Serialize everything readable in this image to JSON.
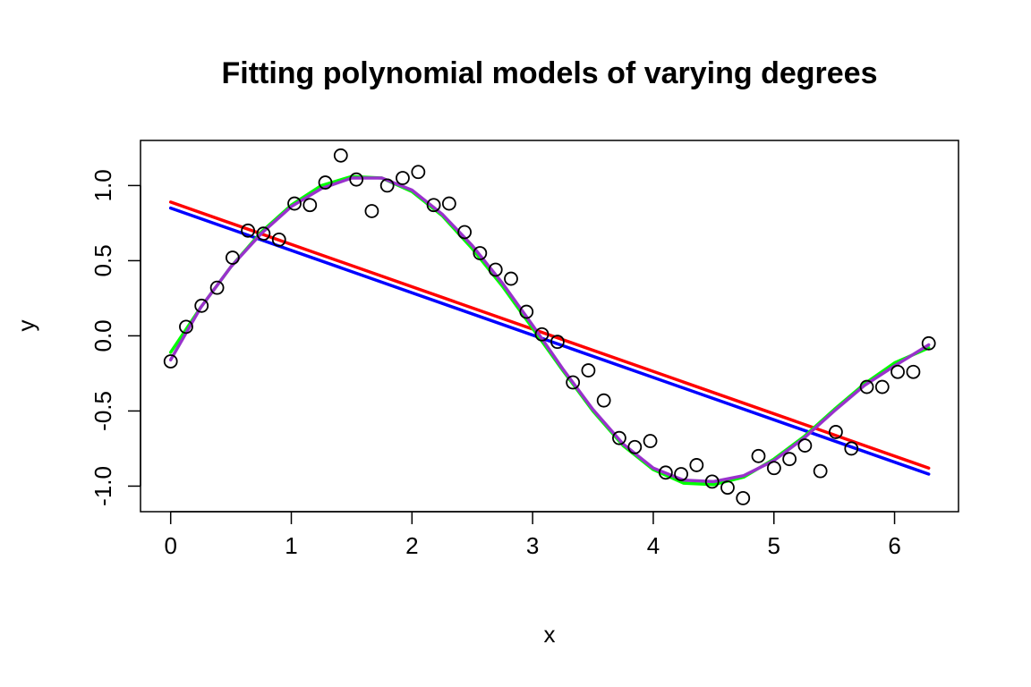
{
  "chart_data": {
    "type": "scatter",
    "title": "Fitting polynomial models of varying degrees",
    "xlabel": "x",
    "ylabel": "y",
    "xlim": [
      -0.25,
      6.53
    ],
    "ylim": [
      -1.17,
      1.3
    ],
    "x_ticks": [
      0,
      1,
      2,
      3,
      4,
      5,
      6
    ],
    "x_tick_labels": [
      "0",
      "1",
      "2",
      "3",
      "4",
      "5",
      "6"
    ],
    "y_ticks": [
      -1.0,
      -0.5,
      0.0,
      0.5,
      1.0
    ],
    "y_tick_labels": [
      "-1.0",
      "-0.5",
      "0.0",
      "0.5",
      "1.0"
    ],
    "grid": false,
    "points": {
      "x": [
        0.0,
        0.128,
        0.256,
        0.385,
        0.513,
        0.641,
        0.769,
        0.898,
        1.026,
        1.154,
        1.282,
        1.41,
        1.539,
        1.667,
        1.795,
        1.923,
        2.052,
        2.18,
        2.308,
        2.436,
        2.564,
        2.693,
        2.821,
        2.949,
        3.077,
        3.206,
        3.334,
        3.462,
        3.59,
        3.718,
        3.847,
        3.975,
        4.103,
        4.231,
        4.359,
        4.488,
        4.616,
        4.744,
        4.872,
        5.001,
        5.129,
        5.257,
        5.385,
        5.513,
        5.642,
        5.77,
        5.898,
        6.026,
        6.155,
        6.283
      ],
      "y": [
        -0.17,
        0.06,
        0.2,
        0.32,
        0.52,
        0.7,
        0.68,
        0.64,
        0.88,
        0.87,
        1.02,
        1.2,
        1.04,
        0.83,
        1.0,
        1.05,
        1.09,
        0.87,
        0.88,
        0.69,
        0.55,
        0.44,
        0.38,
        0.16,
        0.01,
        -0.04,
        -0.31,
        -0.23,
        -0.43,
        -0.68,
        -0.74,
        -0.7,
        -0.91,
        -0.92,
        -0.86,
        -0.97,
        -1.01,
        -1.08,
        -0.8,
        -0.88,
        -0.82,
        -0.73,
        -0.9,
        -0.64,
        -0.75,
        -0.34,
        -0.34,
        -0.24,
        -0.24,
        -0.05
      ]
    },
    "fits": [
      {
        "color": "#ff0000",
        "kind": "linear",
        "endpoints": [
          [
            0.0,
            0.89
          ],
          [
            6.283,
            -0.88
          ]
        ]
      },
      {
        "color": "#0000ff",
        "kind": "linear",
        "endpoints": [
          [
            0.0,
            0.85
          ],
          [
            6.283,
            -0.92
          ]
        ]
      },
      {
        "color": "#00ff00",
        "kind": "smooth",
        "x": [
          0.0,
          0.25,
          0.5,
          0.75,
          1.0,
          1.25,
          1.5,
          1.75,
          2.0,
          2.25,
          2.5,
          2.75,
          3.0,
          3.25,
          3.5,
          3.75,
          4.0,
          4.25,
          4.5,
          4.75,
          5.0,
          5.25,
          5.5,
          5.75,
          6.0,
          6.283
        ],
        "y": [
          -0.11,
          0.19,
          0.46,
          0.69,
          0.87,
          1.0,
          1.06,
          1.05,
          0.96,
          0.8,
          0.58,
          0.33,
          0.05,
          -0.23,
          -0.5,
          -0.73,
          -0.89,
          -0.98,
          -0.99,
          -0.94,
          -0.82,
          -0.67,
          -0.49,
          -0.32,
          -0.18,
          -0.08
        ]
      },
      {
        "color": "#9932cc",
        "kind": "smooth",
        "x": [
          0.0,
          0.25,
          0.5,
          0.75,
          1.0,
          1.25,
          1.5,
          1.75,
          2.0,
          2.25,
          2.5,
          2.75,
          3.0,
          3.25,
          3.5,
          3.75,
          4.0,
          4.25,
          4.5,
          4.75,
          5.0,
          5.25,
          5.5,
          5.75,
          6.0,
          6.283
        ],
        "y": [
          -0.16,
          0.19,
          0.46,
          0.68,
          0.86,
          0.98,
          1.05,
          1.05,
          0.97,
          0.81,
          0.6,
          0.35,
          0.07,
          -0.22,
          -0.49,
          -0.72,
          -0.88,
          -0.96,
          -0.97,
          -0.93,
          -0.83,
          -0.68,
          -0.5,
          -0.33,
          -0.2,
          -0.06
        ]
      }
    ]
  }
}
